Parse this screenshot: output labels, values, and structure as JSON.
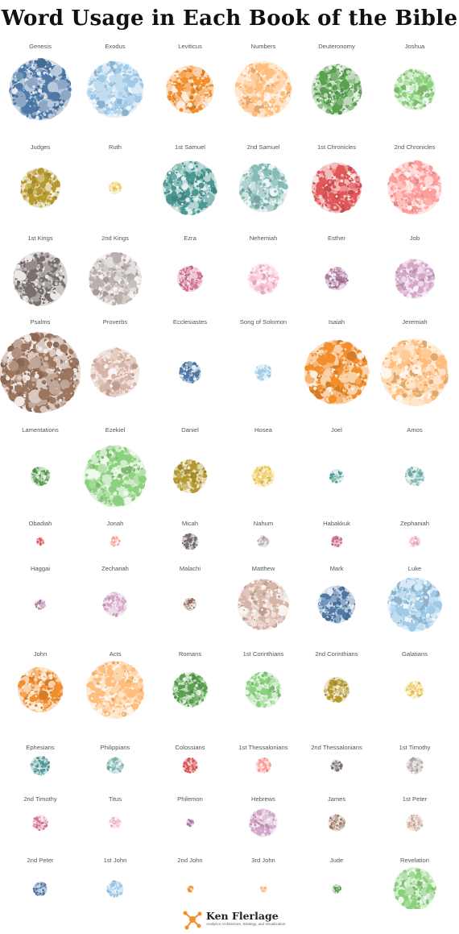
{
  "title": "Word Usage in Each Book of the Bible",
  "footer": {
    "author": "Ken Flerlage",
    "tagline": "Analytics Architecture, Strategy, and Visualization",
    "logo_icon": "network-logo-icon",
    "logo_color": "#f28e2b"
  },
  "chart_data": {
    "type": "packed-bubble",
    "title": "Word Usage in Each Book of the Bible",
    "books": [
      {
        "name": "Genesis",
        "rel_size": 0.96,
        "color": "#4e79a7"
      },
      {
        "name": "Exodus",
        "rel_size": 0.88,
        "color": "#a0cbe8"
      },
      {
        "name": "Leviticus",
        "rel_size": 0.74,
        "color": "#f28e2b"
      },
      {
        "name": "Numbers",
        "rel_size": 0.88,
        "color": "#ffbe7d"
      },
      {
        "name": "Deuteronomy",
        "rel_size": 0.78,
        "color": "#59a14f"
      },
      {
        "name": "Joshua",
        "rel_size": 0.64,
        "color": "#8cd17d"
      },
      {
        "name": "Judges",
        "rel_size": 0.62,
        "color": "#b6992d"
      },
      {
        "name": "Ruth",
        "rel_size": 0.2,
        "color": "#f1ce63"
      },
      {
        "name": "1st Samuel",
        "rel_size": 0.84,
        "color": "#499894"
      },
      {
        "name": "2nd Samuel",
        "rel_size": 0.76,
        "color": "#86bcb6"
      },
      {
        "name": "1st Chronicles",
        "rel_size": 0.78,
        "color": "#e15759"
      },
      {
        "name": "2nd Chronicles",
        "rel_size": 0.84,
        "color": "#ff9d9a"
      },
      {
        "name": "1st Kings",
        "rel_size": 0.84,
        "color": "#79706e"
      },
      {
        "name": "2nd Kings",
        "rel_size": 0.82,
        "color": "#bab0ac"
      },
      {
        "name": "Ezra",
        "rel_size": 0.4,
        "color": "#d37295"
      },
      {
        "name": "Nehemiah",
        "rel_size": 0.48,
        "color": "#fabfd2"
      },
      {
        "name": "Esther",
        "rel_size": 0.36,
        "color": "#b07aa1"
      },
      {
        "name": "Job",
        "rel_size": 0.62,
        "color": "#d4a6c8"
      },
      {
        "name": "Psalms",
        "rel_size": 1.25,
        "color": "#9d7660"
      },
      {
        "name": "Proverbs",
        "rel_size": 0.76,
        "color": "#d7b5a6"
      },
      {
        "name": "Ecclesiastes",
        "rel_size": 0.34,
        "color": "#4e79a7"
      },
      {
        "name": "Song of Solomon",
        "rel_size": 0.26,
        "color": "#a0cbe8"
      },
      {
        "name": "Isaiah",
        "rel_size": 1.0,
        "color": "#f28e2b"
      },
      {
        "name": "Jeremiah",
        "rel_size": 1.05,
        "color": "#ffbe7d"
      },
      {
        "name": "Lamentations",
        "rel_size": 0.3,
        "color": "#59a14f"
      },
      {
        "name": "Ezekiel",
        "rel_size": 0.96,
        "color": "#8cd17d"
      },
      {
        "name": "Daniel",
        "rel_size": 0.52,
        "color": "#b6992d"
      },
      {
        "name": "Hosea",
        "rel_size": 0.35,
        "color": "#f1ce63"
      },
      {
        "name": "Joel",
        "rel_size": 0.22,
        "color": "#499894"
      },
      {
        "name": "Amos",
        "rel_size": 0.3,
        "color": "#86bcb6"
      },
      {
        "name": "Obadiah",
        "rel_size": 0.12,
        "color": "#e15759"
      },
      {
        "name": "Jonah",
        "rel_size": 0.16,
        "color": "#ff9d9a"
      },
      {
        "name": "Micah",
        "rel_size": 0.26,
        "color": "#79706e"
      },
      {
        "name": "Nahum",
        "rel_size": 0.18,
        "color": "#bab0ac"
      },
      {
        "name": "Habakkuk",
        "rel_size": 0.18,
        "color": "#d37295"
      },
      {
        "name": "Zephaniah",
        "rel_size": 0.18,
        "color": "#fabfd2"
      },
      {
        "name": "Haggai",
        "rel_size": 0.16,
        "color": "#b07aa1"
      },
      {
        "name": "Zechariah",
        "rel_size": 0.38,
        "color": "#d4a6c8"
      },
      {
        "name": "Malachi",
        "rel_size": 0.2,
        "color": "#9d7660"
      },
      {
        "name": "Matthew",
        "rel_size": 0.8,
        "color": "#d7b5a6"
      },
      {
        "name": "Mark",
        "rel_size": 0.58,
        "color": "#4e79a7"
      },
      {
        "name": "Luke",
        "rel_size": 0.84,
        "color": "#a0cbe8"
      },
      {
        "name": "John",
        "rel_size": 0.7,
        "color": "#f28e2b"
      },
      {
        "name": "Acts",
        "rel_size": 0.9,
        "color": "#ffbe7d"
      },
      {
        "name": "Romans",
        "rel_size": 0.54,
        "color": "#59a14f"
      },
      {
        "name": "1st Corinthians",
        "rel_size": 0.56,
        "color": "#8cd17d"
      },
      {
        "name": "2nd Corinthians",
        "rel_size": 0.4,
        "color": "#b6992d"
      },
      {
        "name": "Galatians",
        "rel_size": 0.28,
        "color": "#f1ce63"
      },
      {
        "name": "Ephesians",
        "rel_size": 0.3,
        "color": "#499894"
      },
      {
        "name": "Philippians",
        "rel_size": 0.26,
        "color": "#86bcb6"
      },
      {
        "name": "Colossians",
        "rel_size": 0.24,
        "color": "#e15759"
      },
      {
        "name": "1st Thessalonians",
        "rel_size": 0.24,
        "color": "#ff9d9a"
      },
      {
        "name": "2nd Thessalonians",
        "rel_size": 0.18,
        "color": "#79706e"
      },
      {
        "name": "1st Timothy",
        "rel_size": 0.26,
        "color": "#bab0ac"
      },
      {
        "name": "2nd Timothy",
        "rel_size": 0.24,
        "color": "#d37295"
      },
      {
        "name": "Titus",
        "rel_size": 0.18,
        "color": "#fabfd2"
      },
      {
        "name": "Philemon",
        "rel_size": 0.12,
        "color": "#b07aa1"
      },
      {
        "name": "Hebrews",
        "rel_size": 0.44,
        "color": "#d4a6c8"
      },
      {
        "name": "James",
        "rel_size": 0.26,
        "color": "#9d7660"
      },
      {
        "name": "1st Peter",
        "rel_size": 0.26,
        "color": "#d7b5a6"
      },
      {
        "name": "2nd Peter",
        "rel_size": 0.22,
        "color": "#4e79a7"
      },
      {
        "name": "1st John",
        "rel_size": 0.26,
        "color": "#a0cbe8"
      },
      {
        "name": "2nd John",
        "rel_size": 0.1,
        "color": "#f28e2b"
      },
      {
        "name": "3rd John",
        "rel_size": 0.1,
        "color": "#ffbe7d"
      },
      {
        "name": "Jude",
        "rel_size": 0.14,
        "color": "#59a14f"
      },
      {
        "name": "Revelation",
        "rel_size": 0.66,
        "color": "#8cd17d"
      }
    ]
  }
}
